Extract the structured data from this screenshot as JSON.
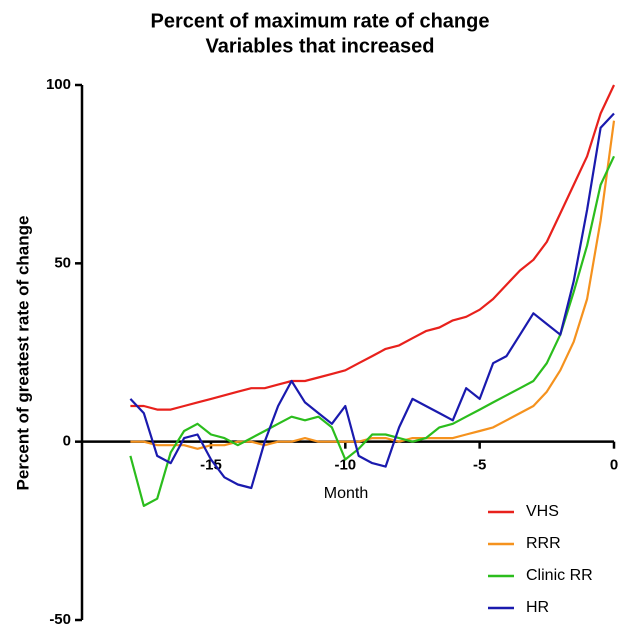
{
  "chart_data": {
    "type": "line",
    "title": "Percent of maximum rate of change",
    "subtitle": "Variables that increased",
    "x_label": "Month",
    "y_label": "Percent of greatest rate of change",
    "xlim": [
      -19.8,
      0
    ],
    "xticks": [
      -15,
      -10,
      -5,
      0
    ],
    "ylim": [
      -50,
      100
    ],
    "yticks": [
      -50,
      0,
      50,
      100
    ],
    "legend": "bottom-right",
    "x": [
      -18,
      -17.5,
      -17,
      -16.5,
      -16,
      -15.5,
      -15,
      -14.5,
      -14,
      -13.5,
      -13,
      -12.5,
      -12,
      -11.5,
      -11,
      -10.5,
      -10,
      -9.5,
      -9,
      -8.5,
      -8,
      -7.5,
      -7,
      -6.5,
      -6,
      -5.5,
      -5,
      -4.5,
      -4,
      -3.5,
      -3,
      -2.5,
      -2,
      -1.5,
      -1,
      -0.5,
      0
    ],
    "series": [
      {
        "name": "VHS",
        "color": "#e8211c",
        "values": [
          10,
          10,
          9,
          9,
          10,
          11,
          12,
          13,
          14,
          15,
          15,
          16,
          17,
          17,
          18,
          19,
          20,
          22,
          24,
          26,
          27,
          29,
          31,
          32,
          34,
          35,
          37,
          40,
          44,
          48,
          51,
          56,
          64,
          72,
          80,
          92,
          100
        ]
      },
      {
        "name": "RRR",
        "color": "#f5921e",
        "values": [
          0,
          0,
          -1,
          -1,
          -1,
          -2,
          -1,
          -1,
          0,
          0,
          -1,
          0,
          0,
          1,
          0,
          0,
          0,
          0,
          1,
          1,
          0,
          1,
          1,
          1,
          1,
          2,
          3,
          4,
          6,
          8,
          10,
          14,
          20,
          28,
          40,
          62,
          90
        ]
      },
      {
        "name": "Clinic RR",
        "color": "#2bbd1d",
        "values": [
          -4,
          -18,
          -16,
          -3,
          3,
          5,
          2,
          1,
          -1,
          1,
          3,
          5,
          7,
          6,
          7,
          4,
          -5,
          -2,
          2,
          2,
          1,
          0,
          1,
          4,
          5,
          7,
          9,
          11,
          13,
          15,
          17,
          22,
          30,
          42,
          55,
          72,
          80
        ]
      },
      {
        "name": "HR",
        "color": "#1a1aae",
        "values": [
          12,
          8,
          -4,
          -6,
          1,
          2,
          -5,
          -10,
          -12,
          -13,
          0,
          10,
          17,
          11,
          8,
          5,
          10,
          -4,
          -6,
          -7,
          4,
          12,
          10,
          8,
          6,
          15,
          12,
          22,
          24,
          30,
          36,
          33,
          30,
          45,
          65,
          88,
          92
        ]
      }
    ]
  }
}
